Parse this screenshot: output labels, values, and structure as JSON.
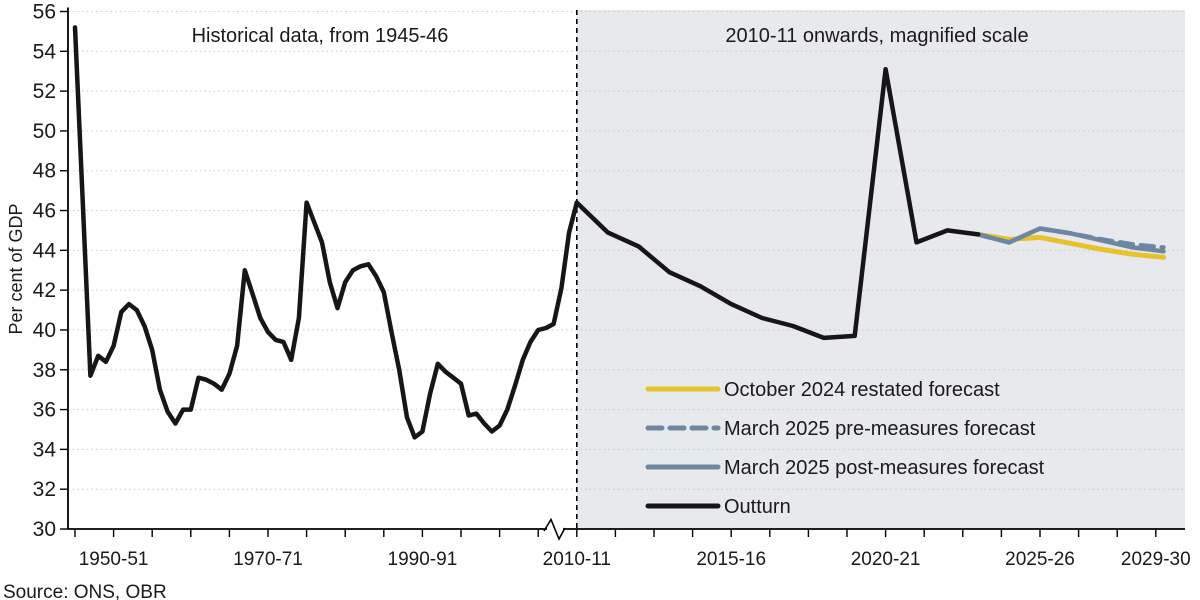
{
  "source": "Source: ONS, OBR",
  "annotations": {
    "left_region": "Historical data, from 1945-46",
    "right_region": "2010-11 onwards, magnified scale"
  },
  "y_axis": {
    "label": "Per cent of GDP",
    "min": 30,
    "max": 56,
    "step": 2
  },
  "colors": {
    "outturn": "#161616",
    "october_2024": "#e7c32b",
    "march_2025": "#6d87a2",
    "magnified_background": "#e8e9ec",
    "gridline": "#c9c9c9"
  },
  "legend": [
    {
      "label": "October 2024 restated forecast",
      "color": "#e7c32b",
      "style": "solid"
    },
    {
      "label": "March 2025 pre-measures forecast",
      "color": "#6d87a2",
      "style": "dashed"
    },
    {
      "label": "March 2025 post-measures forecast",
      "color": "#6d87a2",
      "style": "solid"
    },
    {
      "label": "Outturn",
      "color": "#161616",
      "style": "solid"
    }
  ],
  "chart_data": {
    "type": "line",
    "title": "",
    "xlabel": "",
    "ylabel": "Per cent of GDP",
    "ylim": [
      30,
      56
    ],
    "y_tick_step": 2,
    "grid": "dotted horizontal",
    "legend_position": "inside lower right",
    "x_axis_break_before": "2010-11",
    "regions": [
      {
        "label": "Historical data, from 1945-46",
        "from": "1945-46",
        "to": "2010-11",
        "background": "#ffffff"
      },
      {
        "label": "2010-11 onwards, magnified scale",
        "from": "2010-11",
        "to": "2029-30",
        "background": "#e8e9ec",
        "note": "magnified x scale"
      }
    ],
    "xticklabels": [
      {
        "text": "1950-51",
        "tick": 1
      },
      {
        "text": "1970-71",
        "tick": 5
      },
      {
        "text": "1990-91",
        "tick": 9
      },
      {
        "text": "2010-11",
        "tick": 13
      },
      {
        "text": "2015-16",
        "tick": 17
      },
      {
        "text": "2020-21",
        "tick": 21
      },
      {
        "text": "2025-26",
        "tick": 25
      },
      {
        "text": "2029-30",
        "tick": 28
      }
    ],
    "series": [
      {
        "name": "Outturn (historical, annual from 1945-46)",
        "color": "#161616",
        "style": "solid",
        "width": 4.5,
        "region": "left",
        "first_year": "1945-46",
        "values": [
          55.2,
          46.5,
          37.7,
          38.7,
          38.4,
          39.2,
          40.9,
          41.3,
          41.0,
          40.2,
          39.0,
          37.0,
          35.9,
          35.3,
          36.0,
          36.0,
          37.6,
          37.5,
          37.3,
          37.0,
          37.8,
          39.2,
          43.0,
          41.8,
          40.6,
          39.9,
          39.5,
          39.4,
          38.5,
          40.6,
          46.4,
          45.4,
          44.4,
          42.4,
          41.1,
          42.4,
          43.0,
          43.2,
          43.3,
          42.7,
          41.9,
          39.9,
          38.0,
          35.6,
          34.6,
          34.9,
          36.8,
          38.3,
          37.9,
          37.6,
          37.3,
          35.7,
          35.8,
          35.3,
          34.9,
          35.2,
          36.0,
          37.2,
          38.5,
          39.4,
          40.0,
          40.1,
          40.3,
          42.1,
          44.9,
          46.4
        ]
      },
      {
        "name": "October 2024 restated forecast",
        "color": "#e7c32b",
        "style": "solid",
        "width": 5,
        "region": "right",
        "first_year": "2023-24",
        "values": [
          44.8,
          44.55,
          44.65,
          44.35,
          44.05,
          43.8,
          43.65
        ]
      },
      {
        "name": "March 2025 pre-measures forecast",
        "color": "#6d87a2",
        "style": "dashed",
        "width": 4.5,
        "region": "right",
        "first_year": "2023-24",
        "values": [
          44.8,
          44.4,
          45.1,
          44.85,
          44.55,
          44.3,
          44.15
        ]
      },
      {
        "name": "March 2025 post-measures forecast",
        "color": "#6d87a2",
        "style": "solid",
        "width": 4.5,
        "region": "right",
        "first_year": "2023-24",
        "values": [
          44.8,
          44.4,
          45.1,
          44.85,
          44.5,
          44.15,
          43.95
        ]
      },
      {
        "name": "Outturn (magnified, annual from 2010-11)",
        "color": "#161616",
        "style": "solid",
        "width": 4.5,
        "region": "right",
        "first_year": "2010-11",
        "values": [
          46.4,
          44.9,
          44.2,
          42.9,
          42.2,
          41.3,
          40.6,
          40.2,
          39.6,
          39.7,
          53.1,
          44.4,
          45.0,
          44.8
        ]
      }
    ]
  }
}
